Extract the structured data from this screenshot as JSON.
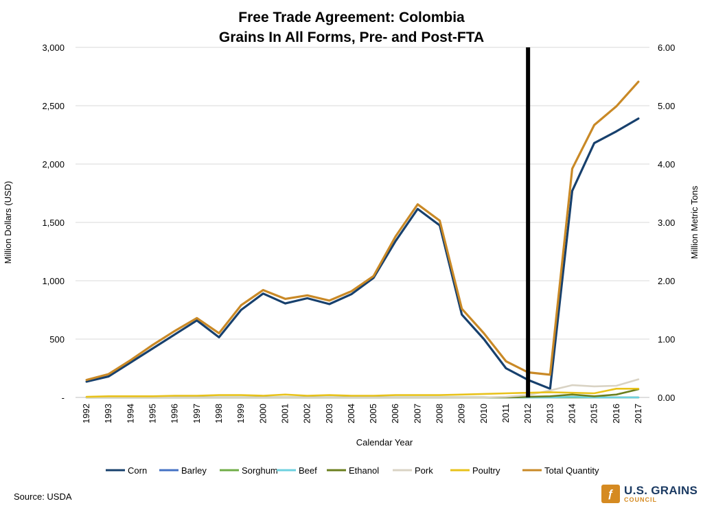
{
  "chart_data": {
    "type": "line",
    "title": [
      "Free Trade Agreement: Colombia",
      "Grains In All Forms, Pre- and Post-FTA"
    ],
    "xlabel": "Calendar Year",
    "ylabel_left": "Million Dollars (USD)",
    "ylabel_right": "Million Metric Tons",
    "ylim_left": [
      0,
      3000
    ],
    "ylim_right": [
      0,
      6
    ],
    "left_ticks": [
      "-",
      "500",
      "1,000",
      "1,500",
      "2,000",
      "2,500",
      "3,000"
    ],
    "left_tick_values": [
      0,
      500,
      1000,
      1500,
      2000,
      2500,
      3000
    ],
    "right_ticks": [
      "0.00",
      "1.00",
      "2.00",
      "3.00",
      "4.00",
      "5.00",
      "6.00"
    ],
    "right_tick_values": [
      0,
      1,
      2,
      3,
      4,
      5,
      6
    ],
    "grid": true,
    "legend_position": "bottom",
    "fta_year": "2012",
    "categories": [
      "1992",
      "1993",
      "1994",
      "1995",
      "1996",
      "1997",
      "1998",
      "1999",
      "2000",
      "2001",
      "2002",
      "2003",
      "2004",
      "2005",
      "2006",
      "2007",
      "2008",
      "2009",
      "2010",
      "2011",
      "2012",
      "2013",
      "2014",
      "2015",
      "2016",
      "2017"
    ],
    "series": [
      {
        "name": "Corn",
        "color": "#17406d",
        "axis": "left",
        "values": [
          135,
          180,
          300,
          420,
          540,
          660,
          515,
          750,
          890,
          805,
          850,
          800,
          885,
          1025,
          1340,
          1615,
          1475,
          710,
          500,
          250,
          150,
          75,
          1770,
          2180,
          2280,
          2390
        ]
      },
      {
        "name": "Barley",
        "color": "#4472c4",
        "axis": "left",
        "values": [
          0,
          0,
          0,
          0,
          0,
          0,
          0,
          0,
          0,
          0,
          0,
          0,
          0,
          0,
          0,
          0,
          0,
          0,
          0,
          0,
          0,
          0,
          0,
          0,
          0,
          0
        ]
      },
      {
        "name": "Sorghum",
        "color": "#70ad47",
        "axis": "left",
        "values": [
          0,
          0,
          0,
          0,
          0,
          0,
          0,
          0,
          0,
          0,
          0,
          0,
          0,
          0,
          0,
          0,
          0,
          0,
          0,
          0,
          0,
          0,
          0,
          0,
          0,
          0
        ]
      },
      {
        "name": "Beef",
        "color": "#6ed1df",
        "axis": "left",
        "values": [
          0,
          0,
          0,
          0,
          0,
          0,
          0,
          0,
          0,
          0,
          0,
          0,
          0,
          0,
          0,
          0,
          0,
          0,
          0,
          0,
          0,
          0,
          5,
          0,
          0,
          0
        ]
      },
      {
        "name": "Ethanol",
        "color": "#6b7f1e",
        "axis": "left",
        "values": [
          0,
          0,
          0,
          0,
          0,
          0,
          0,
          0,
          0,
          0,
          0,
          0,
          0,
          0,
          0,
          0,
          0,
          0,
          0,
          0,
          5,
          10,
          25,
          10,
          25,
          70
        ]
      },
      {
        "name": "Pork",
        "color": "#d9d3c4",
        "axis": "left",
        "values": [
          0,
          0,
          0,
          0,
          0,
          0,
          0,
          0,
          0,
          0,
          0,
          0,
          0,
          0,
          0,
          0,
          0,
          0,
          0,
          5,
          20,
          60,
          105,
          95,
          100,
          155
        ]
      },
      {
        "name": "Poultry",
        "color": "#e8c21a",
        "axis": "left",
        "values": [
          5,
          10,
          10,
          10,
          15,
          15,
          20,
          20,
          15,
          25,
          15,
          20,
          15,
          15,
          20,
          20,
          20,
          25,
          30,
          35,
          40,
          45,
          40,
          35,
          75,
          75
        ]
      },
      {
        "name": "Total Quantity",
        "color": "#c98926",
        "axis": "right",
        "values": [
          0.3,
          0.4,
          0.64,
          0.9,
          1.14,
          1.36,
          1.1,
          1.58,
          1.84,
          1.69,
          1.75,
          1.66,
          1.82,
          2.08,
          2.76,
          3.31,
          3.03,
          1.52,
          1.1,
          0.62,
          0.43,
          0.39,
          3.92,
          4.67,
          4.99,
          5.41
        ]
      }
    ]
  },
  "footer": {
    "source": "Source: USDA",
    "logo_main": "U.S. GRAINS",
    "logo_sub": "COUNCIL",
    "logo_mark": "ƒ"
  }
}
